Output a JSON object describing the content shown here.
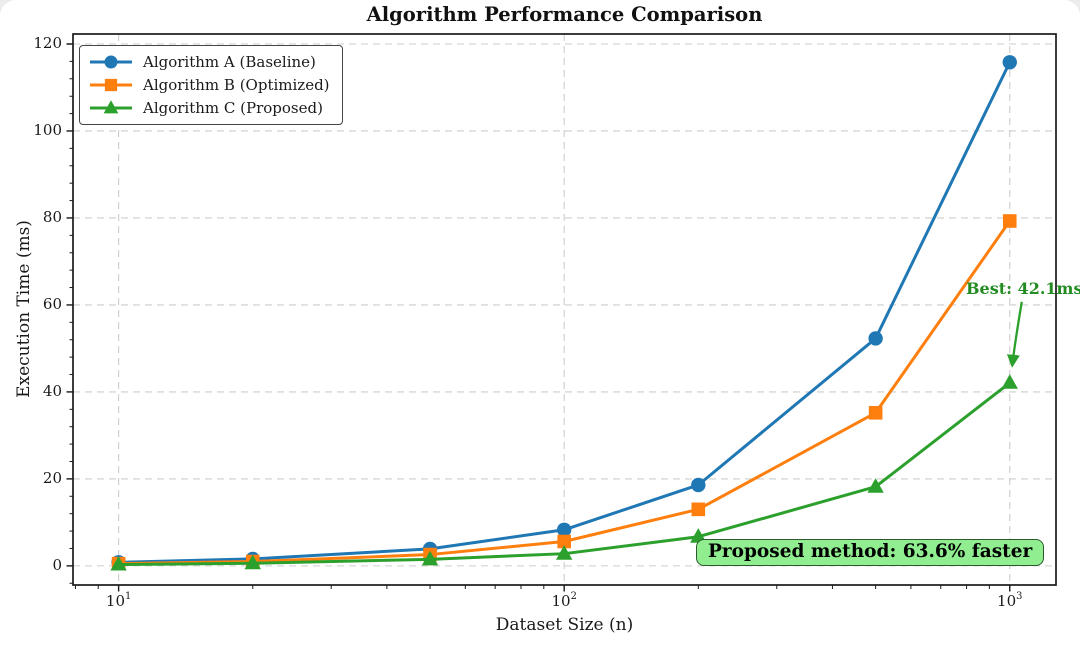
{
  "chart_data": {
    "type": "line",
    "title": "Algorithm Performance Comparison",
    "xlabel": "Dataset Size (n)",
    "ylabel": "Execution Time (ms)",
    "xscale": "log",
    "x": [
      10,
      20,
      50,
      100,
      200,
      500,
      1000
    ],
    "series": [
      {
        "name": "Algorithm A (Baseline)",
        "color": "#1f77b4",
        "marker": "circle",
        "values": [
          0.8,
          1.6,
          3.9,
          8.3,
          18.6,
          52.3,
          115.8
        ]
      },
      {
        "name": "Algorithm B (Optimized)",
        "color": "#ff7f0e",
        "marker": "square",
        "values": [
          0.5,
          1.0,
          2.6,
          5.6,
          13.0,
          35.2,
          79.3
        ]
      },
      {
        "name": "Algorithm C (Proposed)",
        "color": "#2ca02c",
        "marker": "triangle",
        "values": [
          0.3,
          0.6,
          1.5,
          2.8,
          6.7,
          18.2,
          42.1
        ]
      }
    ],
    "ylim": [
      -4.4,
      122.3
    ],
    "xlim": [
      7.9,
      1270
    ],
    "yticks": [
      0,
      20,
      40,
      60,
      80,
      100,
      120
    ],
    "ytick_labels": [
      "0",
      "20",
      "40",
      "60",
      "80",
      "100",
      "120"
    ],
    "xticks": [
      10,
      100,
      1000
    ],
    "xtick_labels": [
      {
        "base": "10",
        "exp": "1"
      },
      {
        "base": "10",
        "exp": "2"
      },
      {
        "base": "10",
        "exp": "3"
      }
    ],
    "grid": {
      "show": true,
      "color": "#cdcdcd",
      "dashed": true
    },
    "legend_position": "upper-left",
    "annotations": {
      "best": {
        "text": "Best: 42.1ms",
        "color": "#228B22",
        "arrow_color": "#2ca02c",
        "target_x": 1000,
        "target_y": 42.1
      },
      "callout": {
        "text": "Proposed method: 63.6% faster",
        "bg": "#90EE90",
        "border": "#2d5a2d"
      }
    }
  }
}
